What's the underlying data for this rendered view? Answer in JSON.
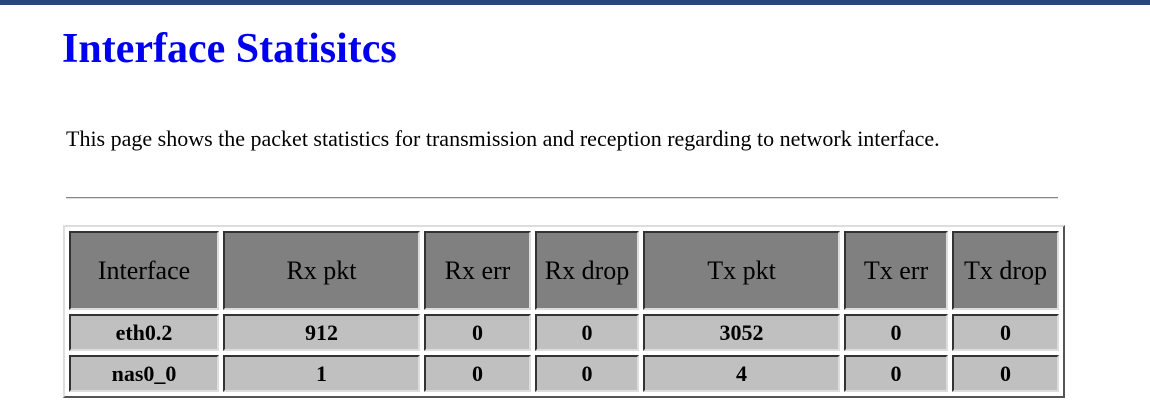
{
  "page": {
    "title": "Interface Statisitcs",
    "description": "This page shows the packet statistics for transmission and reception regarding to network interface."
  },
  "colors": {
    "top_bar": "#294873",
    "title": "#0000ee",
    "header_bg": "#808080",
    "cell_bg": "#c0c0c0"
  },
  "table": {
    "headers": [
      "Interface",
      "Rx pkt",
      "Rx err",
      "Rx drop",
      "Tx pkt",
      "Tx err",
      "Tx drop"
    ],
    "rows": [
      [
        "eth0.2",
        "912",
        "0",
        "0",
        "3052",
        "0",
        "0"
      ],
      [
        "nas0_0",
        "1",
        "0",
        "0",
        "4",
        "0",
        "0"
      ]
    ]
  }
}
